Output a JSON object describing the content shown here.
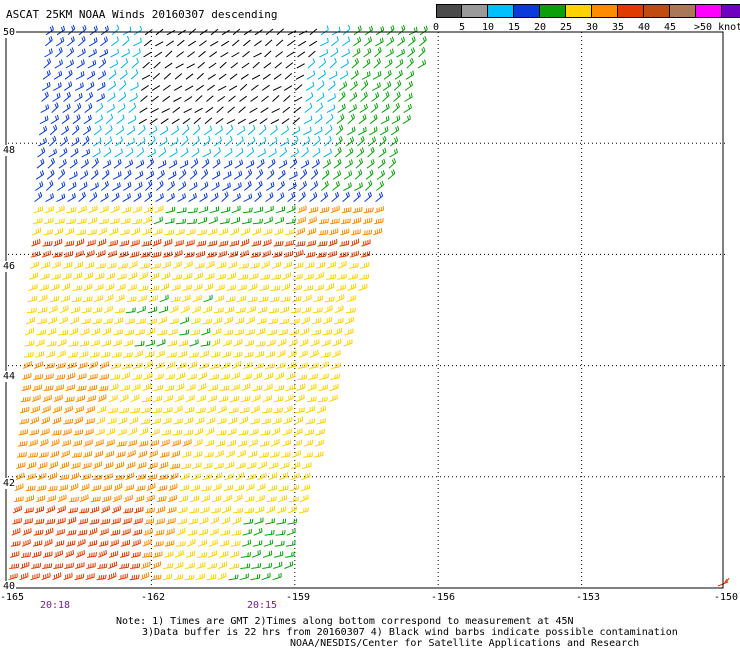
{
  "title": "ASCAT 25KM NOAA Winds 20160307 descending",
  "scale": {
    "colors": [
      "#4a4a4a",
      "#9a9a9a",
      "#00bfff",
      "#00a8f0",
      "#0a3bd8",
      "#0aa00a",
      "#2cd02c",
      "#ffd200",
      "#ffe600",
      "#ff8c00",
      "#ff5a00",
      "#e03a00",
      "#c04a10",
      "#a87858",
      "#ff00ff",
      "#c000ff",
      "#7000c0",
      "#4a1c9a"
    ],
    "labels": [
      "0",
      "5",
      "10",
      "15",
      "20",
      "25",
      "30",
      "35",
      "40",
      "45"
    ],
    "unit_label": ">50 knots"
  },
  "lat_labels": [
    "50",
    "48",
    "46",
    "44",
    "42",
    "40"
  ],
  "lon_labels": [
    "-165",
    "-162",
    "-159",
    "-156",
    "-153",
    "-150"
  ],
  "times": [
    "20:18",
    "20:15"
  ],
  "notes": {
    "line1": "Note: 1) Times are GMT 2)Times along bottom correspond to measurement at 45N",
    "line2": "3)Data buffer is 22 hrs from 20160307 4) Black wind barbs indicate possible contamination",
    "line3": "NOAA/NESDIS/Center for Satellite Applications and Research"
  },
  "map": {
    "lat_range": [
      40,
      50
    ],
    "lon_range": [
      -165,
      -150
    ],
    "swath": {
      "left_edge_lon_at_50": -164.2,
      "left_edge_lon_at_40": -165,
      "right_edge_lon_at_50": -156.2,
      "right_edge_lon_at_40": -159.3
    },
    "wind_regions": [
      {
        "name": "calm-center",
        "speed_knots": 2,
        "color": "#000000"
      },
      {
        "name": "light-cyan",
        "speed_knots": 8,
        "color": "#00b4e6"
      },
      {
        "name": "moderate-blue",
        "speed_knots": 13,
        "color": "#0a3bd8"
      },
      {
        "name": "green",
        "speed_knots": 18,
        "color": "#0aa00a"
      },
      {
        "name": "yellow",
        "speed_knots": 23,
        "color": "#ffd200"
      },
      {
        "name": "orange",
        "speed_knots": 28,
        "color": "#ff8c00"
      },
      {
        "name": "red-orange",
        "speed_knots": 33,
        "color": "#e03a00"
      }
    ]
  }
}
